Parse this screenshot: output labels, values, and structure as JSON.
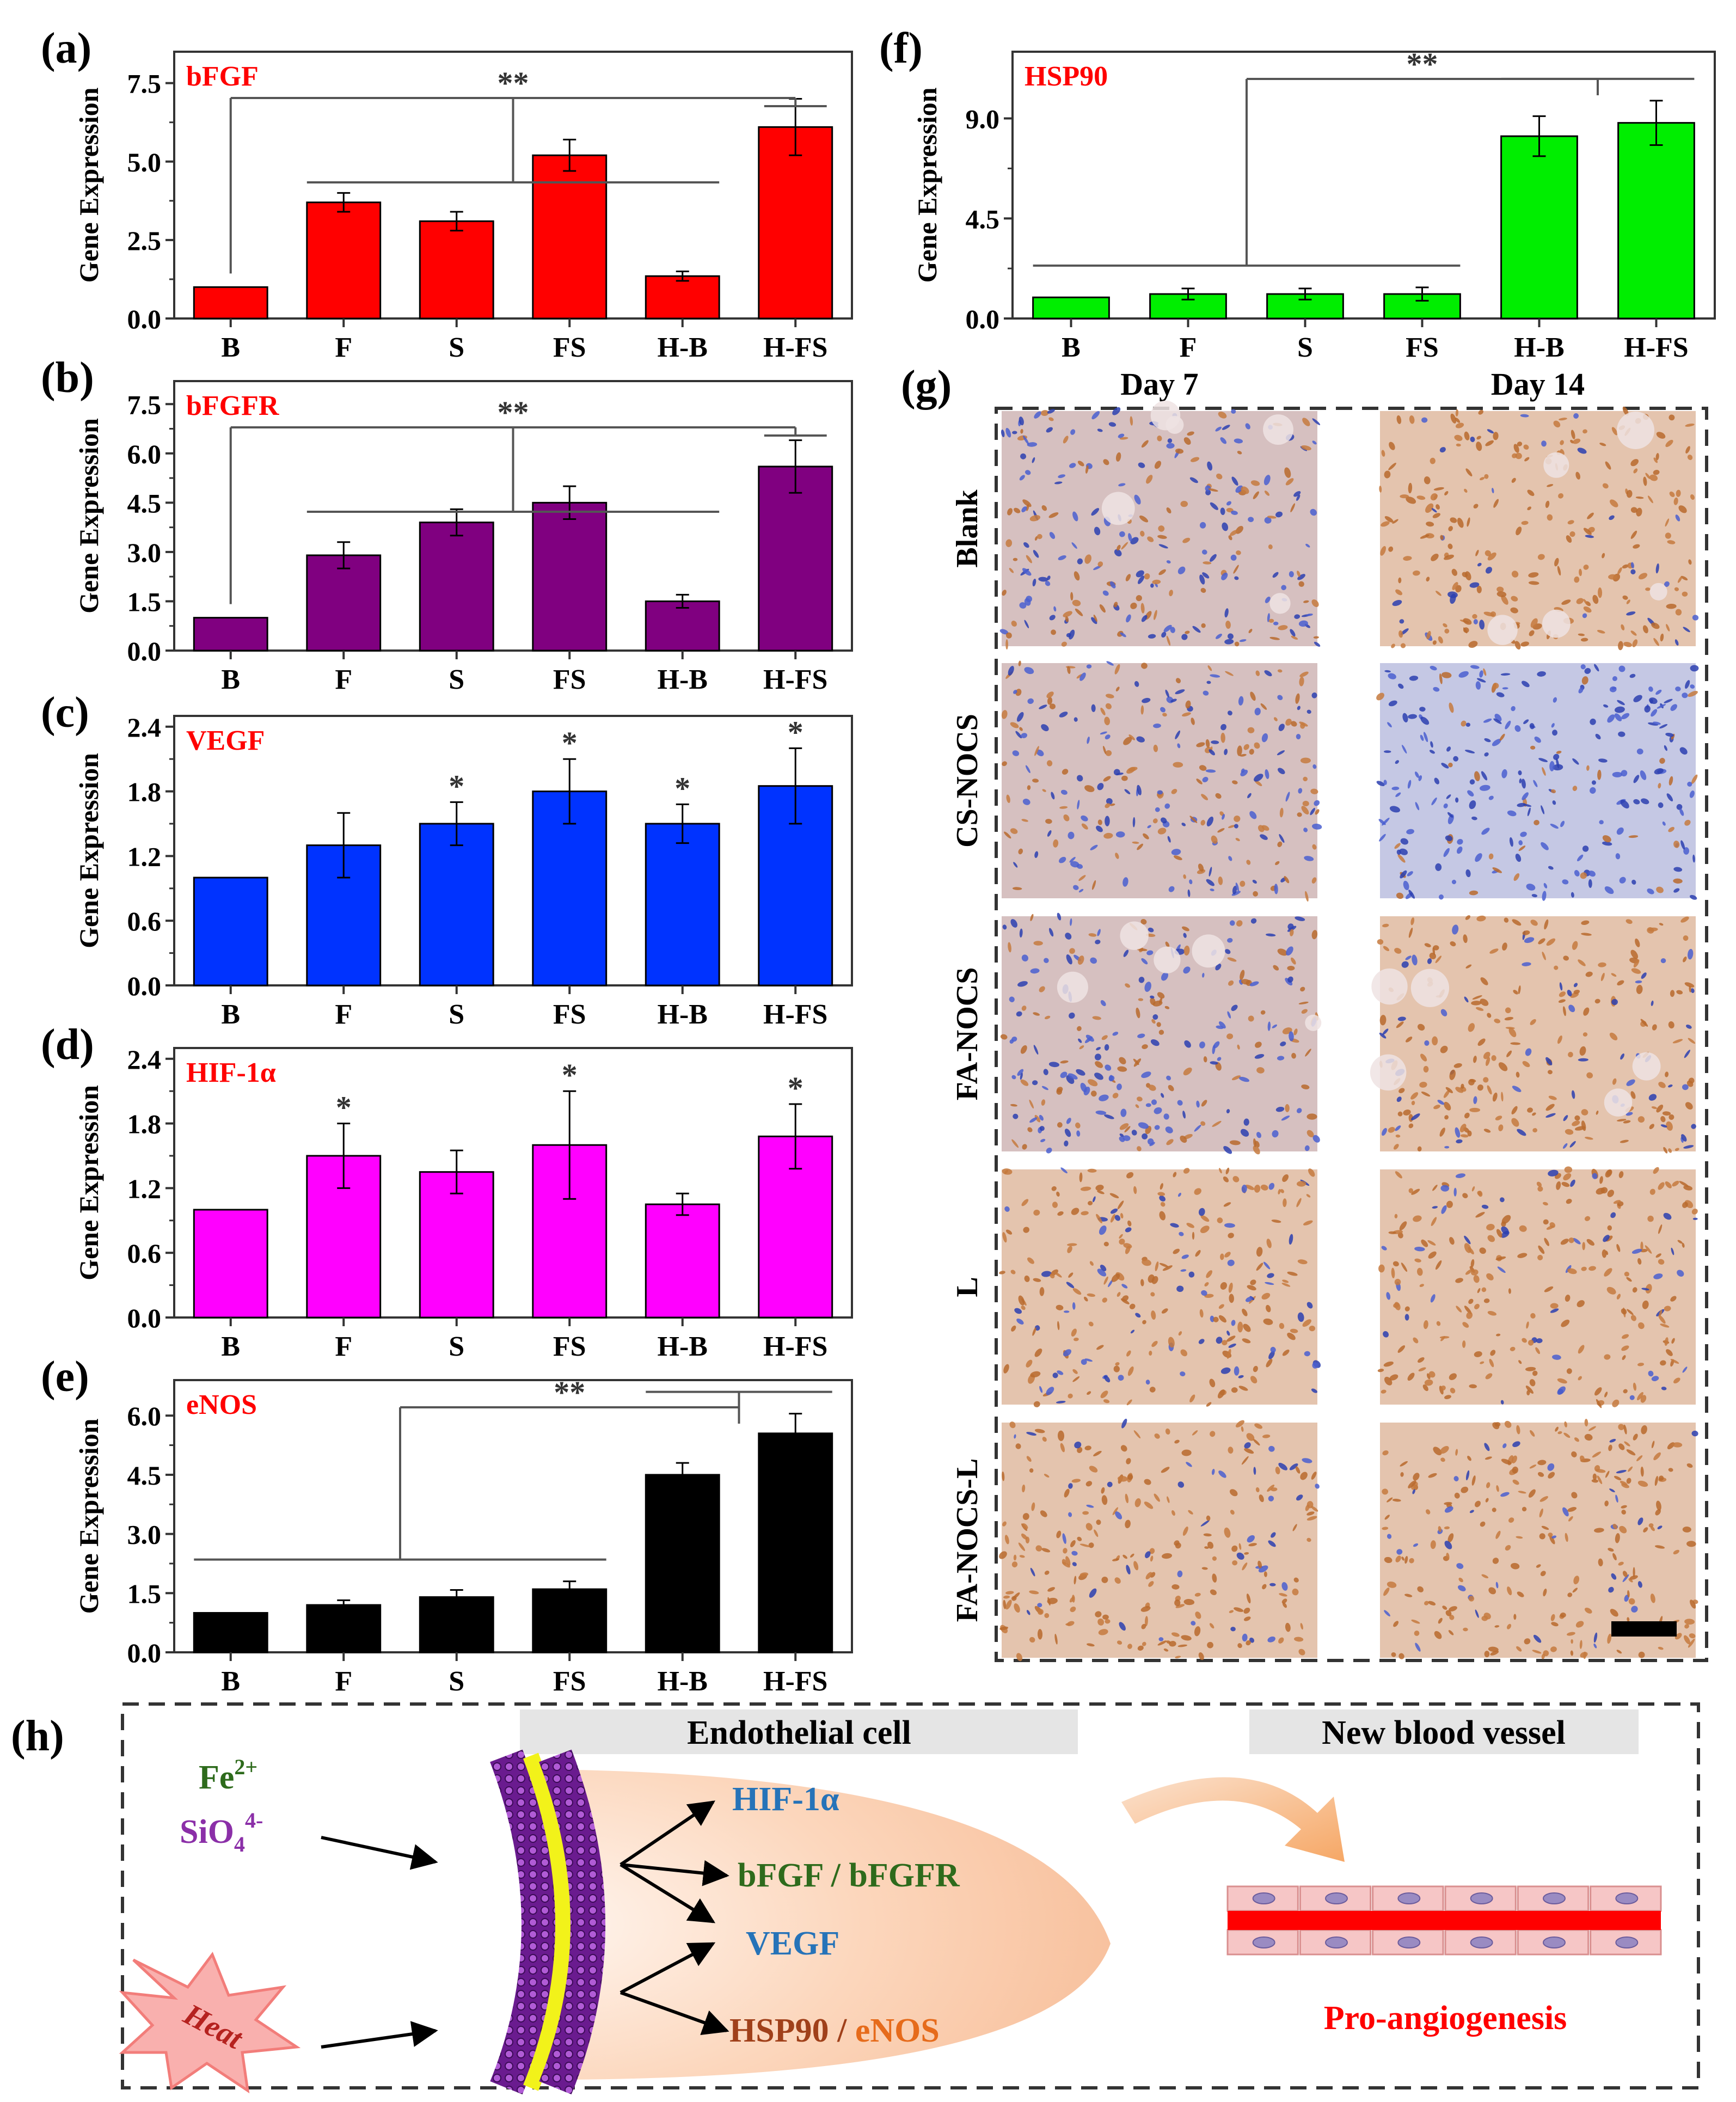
{
  "figure": {
    "colors": {
      "a": "#ff0000",
      "b": "#800080",
      "c": "#0033ff",
      "d": "#ff00ff",
      "e": "#000000",
      "f": "#00ee00",
      "gene_title": "#ff0000"
    }
  },
  "chart_data": [
    {
      "panel": "(a)",
      "type": "bar",
      "title": "bFGF",
      "ylabel": "Gene Expression",
      "categories": [
        "B",
        "F",
        "S",
        "FS",
        "H-B",
        "H-FS"
      ],
      "values": [
        1.0,
        3.7,
        3.1,
        5.2,
        1.35,
        6.1
      ],
      "errors": [
        0,
        0.3,
        0.3,
        0.5,
        0.15,
        0.9
      ],
      "yticks": [
        "0.0",
        "2.5",
        "5.0",
        "7.5"
      ],
      "ylim": [
        0,
        8.5
      ],
      "significance": {
        "label": "**",
        "type": "groups",
        "left": [
          0,
          0
        ],
        "mid": [
          1,
          4
        ],
        "right": [
          5,
          5
        ]
      }
    },
    {
      "panel": "(b)",
      "type": "bar",
      "title": "bFGFR",
      "ylabel": "Gene Expression",
      "categories": [
        "B",
        "F",
        "S",
        "FS",
        "H-B",
        "H-FS"
      ],
      "values": [
        1.0,
        2.9,
        3.9,
        4.5,
        1.5,
        5.6
      ],
      "errors": [
        0,
        0.4,
        0.4,
        0.5,
        0.2,
        0.8
      ],
      "yticks": [
        "0.0",
        "1.5",
        "3.0",
        "4.5",
        "6.0",
        "7.5"
      ],
      "ylim": [
        0,
        8.2
      ],
      "significance": {
        "label": "**",
        "type": "groups",
        "left": [
          0,
          0
        ],
        "mid": [
          1,
          4
        ],
        "right": [
          5,
          5
        ]
      }
    },
    {
      "panel": "(c)",
      "type": "bar",
      "title": "VEGF",
      "ylabel": "Gene Expression",
      "categories": [
        "B",
        "F",
        "S",
        "FS",
        "H-B",
        "H-FS"
      ],
      "values": [
        1.0,
        1.3,
        1.5,
        1.8,
        1.5,
        1.85
      ],
      "errors": [
        0,
        0.3,
        0.2,
        0.3,
        0.18,
        0.35
      ],
      "yticks": [
        "0.0",
        "0.6",
        "1.2",
        "1.8",
        "2.4"
      ],
      "ylim": [
        0,
        2.5
      ],
      "significance": {
        "label": "*",
        "type": "stars",
        "bars": [
          2,
          3,
          4,
          5
        ]
      }
    },
    {
      "panel": "(d)",
      "type": "bar",
      "title": "HIF-1α",
      "ylabel": "Gene Expression",
      "categories": [
        "B",
        "F",
        "S",
        "FS",
        "H-B",
        "H-FS"
      ],
      "values": [
        1.0,
        1.5,
        1.35,
        1.6,
        1.05,
        1.68
      ],
      "errors": [
        0,
        0.3,
        0.2,
        0.5,
        0.1,
        0.3
      ],
      "yticks": [
        "0.0",
        "0.6",
        "1.2",
        "1.8",
        "2.4"
      ],
      "ylim": [
        0,
        2.5
      ],
      "significance": {
        "label": "*",
        "type": "stars",
        "bars": [
          1,
          3,
          5
        ]
      }
    },
    {
      "panel": "(e)",
      "type": "bar",
      "title": "eNOS",
      "ylabel": "Gene Expression",
      "categories": [
        "B",
        "F",
        "S",
        "FS",
        "H-B",
        "H-FS"
      ],
      "values": [
        1.0,
        1.2,
        1.4,
        1.6,
        4.5,
        5.55
      ],
      "errors": [
        0,
        0.12,
        0.18,
        0.2,
        0.3,
        0.5
      ],
      "yticks": [
        "0.0",
        "1.5",
        "3.0",
        "4.5",
        "6.0"
      ],
      "ylim": [
        0,
        6.9
      ],
      "significance": {
        "label": "**",
        "type": "two",
        "left": [
          0,
          3
        ],
        "right": [
          4,
          5
        ]
      }
    },
    {
      "panel": "(f)",
      "type": "bar",
      "title": "HSP90",
      "ylabel": "Gene Expression",
      "categories": [
        "B",
        "F",
        "S",
        "FS",
        "H-B",
        "H-FS"
      ],
      "values": [
        0.95,
        1.1,
        1.1,
        1.1,
        8.2,
        8.8
      ],
      "errors": [
        0,
        0.25,
        0.25,
        0.3,
        0.9,
        1.0
      ],
      "yticks": [
        "0.0",
        "4.5",
        "9.0"
      ],
      "ylim": [
        0,
        12.0
      ],
      "significance": {
        "label": "**",
        "type": "two",
        "left": [
          0,
          3
        ],
        "right": [
          4,
          5
        ]
      }
    }
  ],
  "histology": {
    "label": "(g)",
    "columns": [
      "Day 7",
      "Day 14"
    ],
    "rows": [
      "Blank",
      "CS-NOCS",
      "FA-NOCS",
      "L",
      "FA-NOCS-L"
    ]
  },
  "schematic": {
    "label": "(h)",
    "ion1": "Fe",
    "ion1_sup": "2+",
    "ion2": "SiO",
    "ion2_sub": "4",
    "ion2_sup": "4-",
    "heat": "Heat",
    "cell_header": "Endothelial cell",
    "vessel_header": "New blood vessel",
    "targets": {
      "hif": "HIF-1α",
      "bfgf": "bFGF / bFGFR",
      "vegf": "VEGF",
      "hsp": "HSP90",
      "slash": " / ",
      "enos": "eNOS"
    },
    "outcome": "Pro-angiogenesis"
  }
}
